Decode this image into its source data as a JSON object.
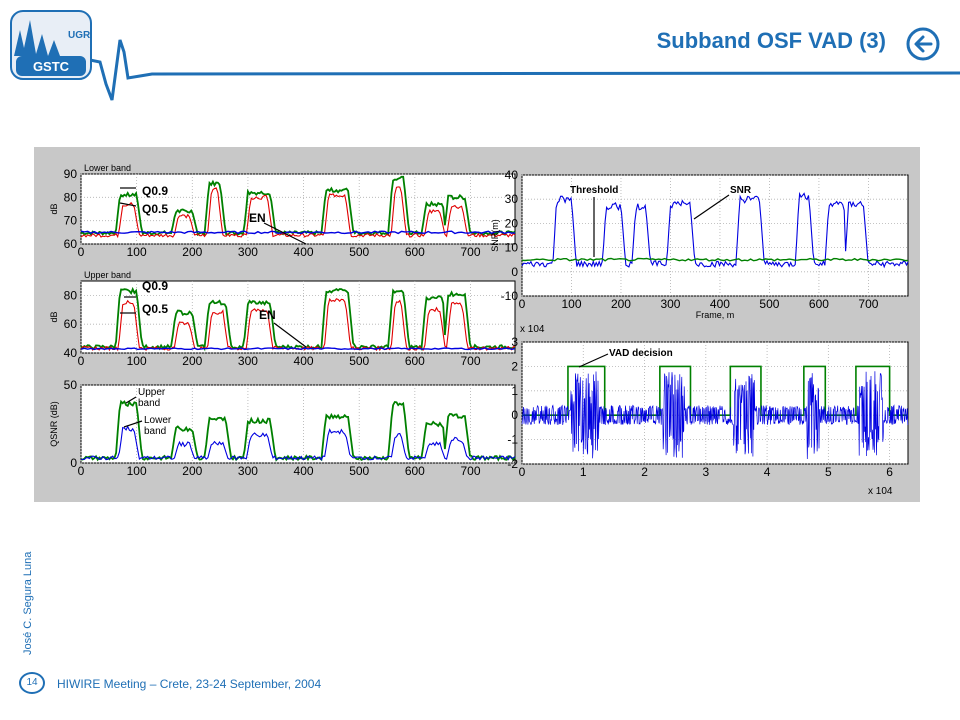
{
  "logo": {
    "top": "UGR",
    "bottom": "GSTC"
  },
  "header": {
    "title": "Subband OSF VAD (3)",
    "back_icon": "arrow-left-circle-icon"
  },
  "colors": {
    "accent": "#1f6fb5",
    "green": "#008000",
    "blue": "#0000e0",
    "red": "#e00000",
    "figure_bg": "#c8c8c8"
  },
  "footer": {
    "author": "José C. Segura Luna",
    "page": "14",
    "meeting": "HIWIRE Meeting – Crete, 23-24 September, 2004"
  },
  "chart_data": [
    {
      "type": "line",
      "id": "lower-band",
      "title": "Lower band",
      "xlabel": "",
      "ylabel": "dB",
      "xlim": [
        0,
        780
      ],
      "ylim": [
        60,
        90
      ],
      "xticks": [
        "0",
        "100",
        "200",
        "300",
        "400",
        "500",
        "600",
        "700"
      ],
      "yticks": [
        "60",
        "70",
        "80",
        "90"
      ],
      "annotations": [
        "Q0.9",
        "Q0.5",
        "EN"
      ],
      "series": [
        {
          "name": "Q0.9",
          "color": "green",
          "floor": 64,
          "x": [
            70,
            100,
            170,
            200,
            230,
            250,
            300,
            340,
            440,
            480,
            560,
            580,
            620,
            650,
            660,
            690
          ],
          "v": [
            81,
            81,
            74,
            74,
            86,
            86,
            82,
            82,
            83,
            83,
            88,
            88,
            77,
            77,
            80,
            80
          ]
        },
        {
          "name": "Q0.5",
          "color": "red",
          "floor": 63,
          "x": [
            75,
            95,
            175,
            195,
            235,
            245,
            305,
            335,
            445,
            475,
            565,
            575,
            625,
            645,
            665,
            685
          ],
          "v": [
            77,
            77,
            72,
            72,
            84,
            84,
            80,
            80,
            81,
            81,
            84,
            84,
            74,
            74,
            76,
            76
          ]
        },
        {
          "name": "EN",
          "color": "blue",
          "flat": 65
        }
      ]
    },
    {
      "type": "line",
      "id": "upper-band",
      "title": "Upper band",
      "xlabel": "",
      "ylabel": "dB",
      "xlim": [
        0,
        780
      ],
      "ylim": [
        40,
        90
      ],
      "xticks": [
        "0",
        "100",
        "200",
        "300",
        "400",
        "500",
        "600",
        "700"
      ],
      "yticks": [
        "40",
        "60",
        "80"
      ],
      "annotations": [
        "Q0.9",
        "Q0.5",
        "EN"
      ],
      "series": [
        {
          "name": "Q0.9",
          "color": "green",
          "floor": 43,
          "x": [
            70,
            100,
            170,
            200,
            230,
            260,
            300,
            340,
            440,
            480,
            560,
            580,
            620,
            650,
            660,
            690
          ],
          "v": [
            83,
            83,
            68,
            68,
            75,
            75,
            75,
            75,
            83,
            83,
            82,
            82,
            78,
            78,
            81,
            81
          ]
        },
        {
          "name": "Q0.5",
          "color": "red",
          "floor": 42,
          "x": [
            75,
            95,
            175,
            195,
            235,
            255,
            305,
            335,
            445,
            475,
            565,
            575,
            625,
            645,
            665,
            685
          ],
          "v": [
            75,
            75,
            60,
            60,
            68,
            68,
            70,
            70,
            77,
            77,
            76,
            76,
            70,
            70,
            74,
            74
          ]
        },
        {
          "name": "EN",
          "color": "blue",
          "flat": 43
        }
      ]
    },
    {
      "type": "line",
      "id": "qsnr",
      "title": "",
      "xlabel": "",
      "ylabel": "QSNR (dB)",
      "xlim": [
        0,
        780
      ],
      "ylim": [
        0,
        50
      ],
      "xticks": [
        "0",
        "100",
        "200",
        "300",
        "400",
        "500",
        "600",
        "700"
      ],
      "yticks": [
        "0",
        "50"
      ],
      "annotations": [
        "Upper band",
        "Lower band"
      ],
      "series": [
        {
          "name": "Upper band",
          "color": "green",
          "floor": 2,
          "x": [
            70,
            100,
            170,
            200,
            230,
            260,
            300,
            340,
            440,
            480,
            560,
            580,
            620,
            650,
            660,
            690
          ],
          "v": [
            38,
            38,
            22,
            22,
            28,
            28,
            27,
            27,
            30,
            30,
            38,
            38,
            25,
            25,
            30,
            30
          ]
        },
        {
          "name": "Lower band",
          "color": "blue",
          "floor": 2,
          "x": [
            75,
            95,
            175,
            195,
            235,
            255,
            305,
            335,
            445,
            475,
            565,
            575,
            625,
            645,
            665,
            685
          ],
          "v": [
            22,
            22,
            12,
            12,
            13,
            13,
            18,
            18,
            20,
            20,
            18,
            18,
            12,
            12,
            15,
            15
          ]
        }
      ]
    },
    {
      "type": "line",
      "id": "snr",
      "title": "",
      "xlabel": "Frame, m",
      "ylabel": "SNR(m)",
      "xlim": [
        0,
        780
      ],
      "ylim": [
        -10,
        40
      ],
      "xticks": [
        "0",
        "100",
        "200",
        "300",
        "400",
        "500",
        "600",
        "700"
      ],
      "yticks": [
        "-10",
        "0",
        "10",
        "20",
        "30",
        "40"
      ],
      "annotations": [
        "Threshold",
        "SNR"
      ],
      "series": [
        {
          "name": "SNR",
          "color": "blue",
          "floor": 2,
          "x": [
            70,
            100,
            170,
            200,
            230,
            250,
            300,
            340,
            440,
            480,
            560,
            580,
            620,
            650,
            660,
            690
          ],
          "v": [
            30,
            30,
            27,
            27,
            27,
            27,
            28,
            28,
            30,
            30,
            31,
            31,
            28,
            28,
            28,
            28
          ]
        },
        {
          "name": "Threshold",
          "color": "green",
          "flat": 5
        }
      ]
    },
    {
      "type": "line",
      "id": "vad-decision",
      "title": "",
      "xlabel": "",
      "ylabel": "",
      "xlim": [
        0,
        6.3
      ],
      "ylim": [
        -2,
        3
      ],
      "xticks": [
        "0",
        "1",
        "2",
        "3",
        "4",
        "5",
        "6"
      ],
      "yticks": [
        "-2",
        "-1",
        "0",
        "1",
        "2",
        "3"
      ],
      "x_multiplier": "x 10^4",
      "y_multiplier": "x 10^4",
      "annotations": [
        "VAD decision"
      ],
      "vad_segments": [
        [
          0.75,
          1.35
        ],
        [
          2.25,
          2.75
        ],
        [
          3.4,
          3.9
        ],
        [
          4.6,
          4.95
        ],
        [
          5.45,
          6.0
        ]
      ],
      "vad_high": 2.0,
      "series": [
        {
          "name": "VAD decision",
          "color": "green"
        },
        {
          "name": "waveform",
          "color": "blue"
        }
      ]
    }
  ]
}
